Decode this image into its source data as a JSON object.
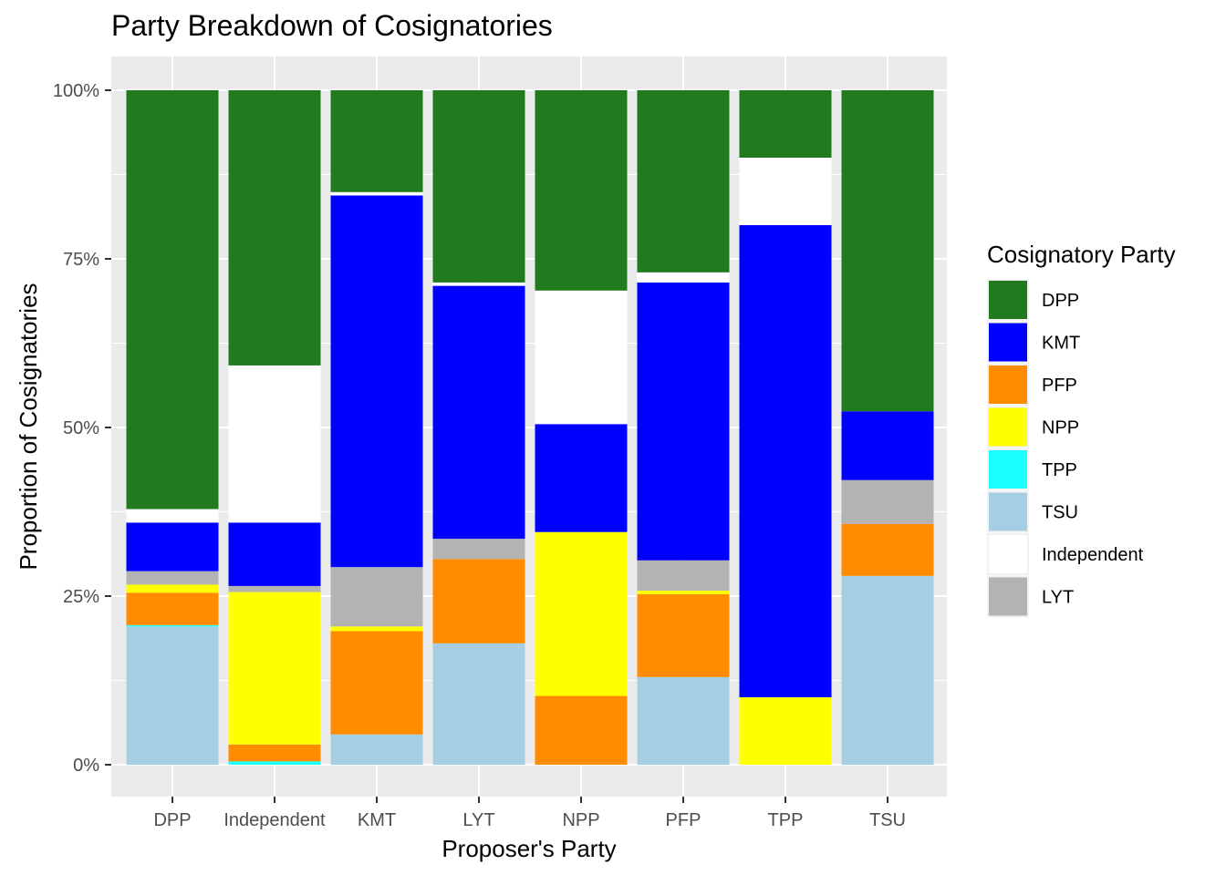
{
  "chart_data": {
    "type": "bar",
    "stacked": true,
    "title": "Party Breakdown of Cosignatories",
    "xlabel": "Proposer's Party",
    "ylabel": "Proportion of Cosignatories",
    "ylim": [
      0,
      1
    ],
    "y_ticks": [
      "0%",
      "25%",
      "50%",
      "75%",
      "100%"
    ],
    "grid": true,
    "legend_title": "Cosignatory Party",
    "legend_position": "right",
    "categories": [
      "DPP",
      "Independent",
      "KMT",
      "LYT",
      "NPP",
      "PFP",
      "TPP",
      "TSU"
    ],
    "series": [
      {
        "name": "TSU",
        "color": "#a6cee3",
        "values": [
          0.205,
          0.0,
          0.045,
          0.18,
          0.0,
          0.13,
          0.0,
          0.28
        ]
      },
      {
        "name": "TPP",
        "color": "#1affff",
        "values": [
          0.002,
          0.005,
          0.0,
          0.0,
          0.0,
          0.0,
          0.0,
          0.0
        ]
      },
      {
        "name": "PFP",
        "color": "#ff8c00",
        "values": [
          0.048,
          0.025,
          0.153,
          0.125,
          0.102,
          0.123,
          0.0,
          0.077
        ]
      },
      {
        "name": "NPP",
        "color": "#ffff00",
        "values": [
          0.012,
          0.226,
          0.007,
          0.0,
          0.243,
          0.005,
          0.1,
          0.0
        ]
      },
      {
        "name": "LYT",
        "color": "#b3b3b3",
        "values": [
          0.02,
          0.009,
          0.088,
          0.03,
          0.0,
          0.045,
          0.0,
          0.065
        ]
      },
      {
        "name": "KMT",
        "color": "#0000ff",
        "values": [
          0.072,
          0.094,
          0.551,
          0.375,
          0.16,
          0.412,
          0.7,
          0.102
        ]
      },
      {
        "name": "Independent",
        "color": "#ffffff",
        "values": [
          0.02,
          0.233,
          0.005,
          0.005,
          0.198,
          0.015,
          0.1,
          0.0
        ]
      },
      {
        "name": "DPP",
        "color": "#217a1e",
        "values": [
          0.621,
          0.408,
          0.151,
          0.285,
          0.297,
          0.27,
          0.1,
          0.476
        ]
      }
    ],
    "legend_order": [
      "DPP",
      "KMT",
      "PFP",
      "NPP",
      "TPP",
      "TSU",
      "Independent",
      "LYT"
    ]
  }
}
